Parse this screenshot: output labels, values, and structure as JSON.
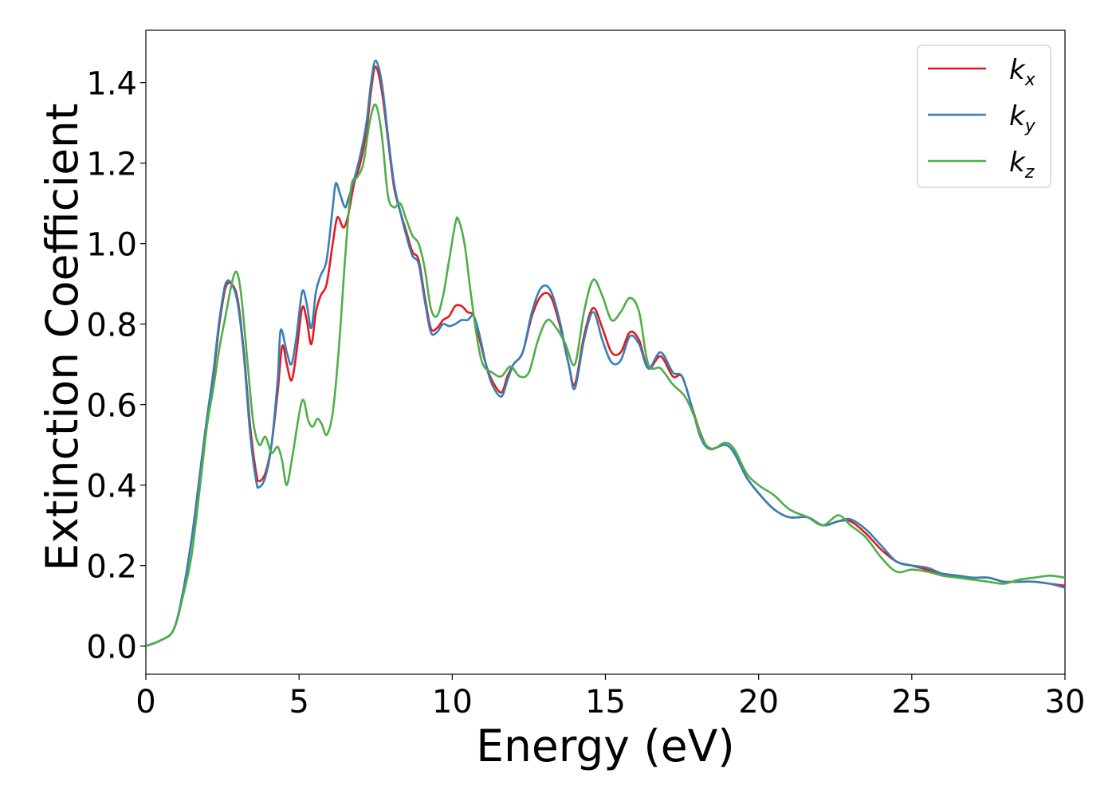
{
  "chart_data": {
    "type": "line",
    "title": "",
    "xlabel": "Energy (eV)",
    "ylabel": "Extinction Coefficient",
    "xlim": [
      0,
      30
    ],
    "ylim": [
      -0.07,
      1.53
    ],
    "x_ticks": [
      0,
      5,
      10,
      15,
      20,
      25,
      30
    ],
    "x_tick_labels": [
      "0",
      "5",
      "10",
      "15",
      "20",
      "25",
      "30"
    ],
    "y_ticks": [
      0.0,
      0.2,
      0.4,
      0.6,
      0.8,
      1.0,
      1.2,
      1.4
    ],
    "y_tick_labels": [
      "0.0",
      "0.2",
      "0.4",
      "0.6",
      "0.8",
      "1.0",
      "1.2",
      "1.4"
    ],
    "grid": false,
    "legend_position": "top-right",
    "series": [
      {
        "name": "k",
        "subscript": "x",
        "color": "#e41a1c",
        "points": [
          [
            0,
            0
          ],
          [
            0.5,
            0.015
          ],
          [
            0.9,
            0.04
          ],
          [
            1.2,
            0.13
          ],
          [
            1.5,
            0.27
          ],
          [
            1.8,
            0.45
          ],
          [
            2.0,
            0.57
          ],
          [
            2.2,
            0.67
          ],
          [
            2.4,
            0.8
          ],
          [
            2.6,
            0.89
          ],
          [
            2.8,
            0.9
          ],
          [
            3.0,
            0.86
          ],
          [
            3.2,
            0.73
          ],
          [
            3.4,
            0.55
          ],
          [
            3.6,
            0.43
          ],
          [
            3.7,
            0.41
          ],
          [
            3.9,
            0.43
          ],
          [
            4.1,
            0.5
          ],
          [
            4.3,
            0.63
          ],
          [
            4.45,
            0.745
          ],
          [
            4.6,
            0.7
          ],
          [
            4.75,
            0.66
          ],
          [
            4.9,
            0.72
          ],
          [
            5.1,
            0.84
          ],
          [
            5.25,
            0.81
          ],
          [
            5.4,
            0.75
          ],
          [
            5.55,
            0.83
          ],
          [
            5.7,
            0.87
          ],
          [
            5.9,
            0.9
          ],
          [
            6.1,
            1.0
          ],
          [
            6.25,
            1.065
          ],
          [
            6.45,
            1.04
          ],
          [
            6.6,
            1.07
          ],
          [
            6.8,
            1.15
          ],
          [
            7.0,
            1.2
          ],
          [
            7.2,
            1.28
          ],
          [
            7.35,
            1.38
          ],
          [
            7.5,
            1.44
          ],
          [
            7.7,
            1.38
          ],
          [
            7.9,
            1.26
          ],
          [
            8.1,
            1.14
          ],
          [
            8.3,
            1.08
          ],
          [
            8.5,
            1.03
          ],
          [
            8.7,
            0.98
          ],
          [
            8.9,
            0.96
          ],
          [
            9.1,
            0.87
          ],
          [
            9.3,
            0.79
          ],
          [
            9.5,
            0.79
          ],
          [
            9.7,
            0.81
          ],
          [
            9.9,
            0.82
          ],
          [
            10.1,
            0.845
          ],
          [
            10.3,
            0.845
          ],
          [
            10.5,
            0.83
          ],
          [
            10.7,
            0.82
          ],
          [
            10.9,
            0.76
          ],
          [
            11.1,
            0.7
          ],
          [
            11.3,
            0.66
          ],
          [
            11.6,
            0.63
          ],
          [
            11.8,
            0.67
          ],
          [
            12.0,
            0.7
          ],
          [
            12.3,
            0.73
          ],
          [
            12.6,
            0.82
          ],
          [
            12.9,
            0.87
          ],
          [
            13.2,
            0.87
          ],
          [
            13.5,
            0.8
          ],
          [
            13.8,
            0.7
          ],
          [
            14.0,
            0.65
          ],
          [
            14.3,
            0.77
          ],
          [
            14.6,
            0.84
          ],
          [
            14.9,
            0.79
          ],
          [
            15.2,
            0.73
          ],
          [
            15.5,
            0.73
          ],
          [
            15.8,
            0.78
          ],
          [
            16.1,
            0.76
          ],
          [
            16.4,
            0.69
          ],
          [
            16.8,
            0.72
          ],
          [
            17.2,
            0.67
          ],
          [
            17.5,
            0.67
          ],
          [
            17.8,
            0.6
          ],
          [
            18.1,
            0.53
          ],
          [
            18.4,
            0.49
          ],
          [
            18.9,
            0.5
          ],
          [
            19.2,
            0.48
          ],
          [
            19.6,
            0.42
          ],
          [
            20.0,
            0.38
          ],
          [
            20.5,
            0.34
          ],
          [
            21.0,
            0.32
          ],
          [
            21.6,
            0.32
          ],
          [
            22.1,
            0.3
          ],
          [
            22.6,
            0.31
          ],
          [
            23.0,
            0.31
          ],
          [
            23.5,
            0.28
          ],
          [
            24.0,
            0.24
          ],
          [
            24.5,
            0.21
          ],
          [
            25.0,
            0.2
          ],
          [
            25.5,
            0.19
          ],
          [
            26.0,
            0.18
          ],
          [
            26.5,
            0.175
          ],
          [
            27.0,
            0.17
          ],
          [
            27.5,
            0.17
          ],
          [
            28.0,
            0.16
          ],
          [
            28.5,
            0.16
          ],
          [
            29.0,
            0.16
          ],
          [
            29.5,
            0.155
          ],
          [
            30.0,
            0.15
          ]
        ]
      },
      {
        "name": "k",
        "subscript": "y",
        "color": "#377eb8",
        "points": [
          [
            0,
            0
          ],
          [
            0.5,
            0.015
          ],
          [
            0.9,
            0.04
          ],
          [
            1.2,
            0.13
          ],
          [
            1.5,
            0.27
          ],
          [
            1.8,
            0.45
          ],
          [
            2.0,
            0.57
          ],
          [
            2.2,
            0.68
          ],
          [
            2.4,
            0.81
          ],
          [
            2.6,
            0.9
          ],
          [
            2.8,
            0.9
          ],
          [
            3.0,
            0.85
          ],
          [
            3.2,
            0.72
          ],
          [
            3.4,
            0.53
          ],
          [
            3.6,
            0.41
          ],
          [
            3.7,
            0.395
          ],
          [
            3.9,
            0.42
          ],
          [
            4.1,
            0.5
          ],
          [
            4.3,
            0.66
          ],
          [
            4.4,
            0.785
          ],
          [
            4.6,
            0.73
          ],
          [
            4.75,
            0.7
          ],
          [
            4.9,
            0.76
          ],
          [
            5.1,
            0.88
          ],
          [
            5.25,
            0.85
          ],
          [
            5.4,
            0.79
          ],
          [
            5.55,
            0.88
          ],
          [
            5.7,
            0.92
          ],
          [
            5.9,
            0.96
          ],
          [
            6.1,
            1.09
          ],
          [
            6.2,
            1.15
          ],
          [
            6.35,
            1.12
          ],
          [
            6.5,
            1.09
          ],
          [
            6.6,
            1.11
          ],
          [
            6.8,
            1.16
          ],
          [
            7.0,
            1.22
          ],
          [
            7.2,
            1.3
          ],
          [
            7.35,
            1.4
          ],
          [
            7.5,
            1.455
          ],
          [
            7.7,
            1.4
          ],
          [
            7.9,
            1.27
          ],
          [
            8.1,
            1.15
          ],
          [
            8.3,
            1.08
          ],
          [
            8.5,
            1.02
          ],
          [
            8.7,
            0.97
          ],
          [
            8.9,
            0.95
          ],
          [
            9.1,
            0.86
          ],
          [
            9.3,
            0.78
          ],
          [
            9.5,
            0.78
          ],
          [
            9.7,
            0.8
          ],
          [
            9.9,
            0.795
          ],
          [
            10.1,
            0.8
          ],
          [
            10.3,
            0.81
          ],
          [
            10.5,
            0.81
          ],
          [
            10.7,
            0.82
          ],
          [
            10.9,
            0.77
          ],
          [
            11.1,
            0.7
          ],
          [
            11.3,
            0.65
          ],
          [
            11.6,
            0.62
          ],
          [
            11.8,
            0.66
          ],
          [
            12.0,
            0.7
          ],
          [
            12.3,
            0.73
          ],
          [
            12.6,
            0.83
          ],
          [
            12.9,
            0.89
          ],
          [
            13.2,
            0.885
          ],
          [
            13.5,
            0.81
          ],
          [
            13.8,
            0.7
          ],
          [
            14.0,
            0.64
          ],
          [
            14.3,
            0.76
          ],
          [
            14.6,
            0.83
          ],
          [
            14.9,
            0.76
          ],
          [
            15.2,
            0.705
          ],
          [
            15.5,
            0.71
          ],
          [
            15.8,
            0.77
          ],
          [
            16.1,
            0.75
          ],
          [
            16.4,
            0.69
          ],
          [
            16.8,
            0.73
          ],
          [
            17.2,
            0.68
          ],
          [
            17.5,
            0.67
          ],
          [
            17.8,
            0.6
          ],
          [
            18.1,
            0.52
          ],
          [
            18.4,
            0.49
          ],
          [
            18.9,
            0.5
          ],
          [
            19.2,
            0.48
          ],
          [
            19.6,
            0.42
          ],
          [
            20.0,
            0.38
          ],
          [
            20.5,
            0.34
          ],
          [
            21.0,
            0.32
          ],
          [
            21.6,
            0.32
          ],
          [
            22.1,
            0.3
          ],
          [
            22.6,
            0.31
          ],
          [
            23.0,
            0.315
          ],
          [
            23.5,
            0.29
          ],
          [
            24.0,
            0.25
          ],
          [
            24.5,
            0.21
          ],
          [
            25.0,
            0.2
          ],
          [
            25.5,
            0.195
          ],
          [
            26.0,
            0.18
          ],
          [
            26.5,
            0.175
          ],
          [
            27.0,
            0.17
          ],
          [
            27.5,
            0.17
          ],
          [
            28.0,
            0.16
          ],
          [
            28.5,
            0.16
          ],
          [
            29.0,
            0.16
          ],
          [
            29.5,
            0.155
          ],
          [
            30.0,
            0.145
          ]
        ]
      },
      {
        "name": "k",
        "subscript": "z",
        "color": "#4daf4a",
        "points": [
          [
            0,
            0
          ],
          [
            0.5,
            0.015
          ],
          [
            0.9,
            0.04
          ],
          [
            1.2,
            0.12
          ],
          [
            1.5,
            0.23
          ],
          [
            1.8,
            0.42
          ],
          [
            2.0,
            0.55
          ],
          [
            2.2,
            0.64
          ],
          [
            2.4,
            0.74
          ],
          [
            2.6,
            0.82
          ],
          [
            2.8,
            0.9
          ],
          [
            2.95,
            0.93
          ],
          [
            3.1,
            0.88
          ],
          [
            3.3,
            0.72
          ],
          [
            3.5,
            0.56
          ],
          [
            3.7,
            0.5
          ],
          [
            3.9,
            0.52
          ],
          [
            4.1,
            0.48
          ],
          [
            4.3,
            0.495
          ],
          [
            4.45,
            0.46
          ],
          [
            4.6,
            0.4
          ],
          [
            4.8,
            0.48
          ],
          [
            5.1,
            0.61
          ],
          [
            5.3,
            0.56
          ],
          [
            5.45,
            0.545
          ],
          [
            5.6,
            0.565
          ],
          [
            5.75,
            0.55
          ],
          [
            5.9,
            0.525
          ],
          [
            6.1,
            0.58
          ],
          [
            6.3,
            0.74
          ],
          [
            6.5,
            0.96
          ],
          [
            6.7,
            1.14
          ],
          [
            6.9,
            1.165
          ],
          [
            7.1,
            1.2
          ],
          [
            7.3,
            1.3
          ],
          [
            7.5,
            1.345
          ],
          [
            7.7,
            1.27
          ],
          [
            7.9,
            1.12
          ],
          [
            8.1,
            1.09
          ],
          [
            8.3,
            1.1
          ],
          [
            8.5,
            1.06
          ],
          [
            8.7,
            1.02
          ],
          [
            8.9,
            1.0
          ],
          [
            9.1,
            0.94
          ],
          [
            9.3,
            0.84
          ],
          [
            9.5,
            0.82
          ],
          [
            9.7,
            0.87
          ],
          [
            9.9,
            0.96
          ],
          [
            10.1,
            1.05
          ],
          [
            10.2,
            1.06
          ],
          [
            10.4,
            1.0
          ],
          [
            10.6,
            0.88
          ],
          [
            10.8,
            0.77
          ],
          [
            11.0,
            0.7
          ],
          [
            11.3,
            0.68
          ],
          [
            11.6,
            0.67
          ],
          [
            11.9,
            0.695
          ],
          [
            12.2,
            0.67
          ],
          [
            12.5,
            0.68
          ],
          [
            12.8,
            0.76
          ],
          [
            13.1,
            0.81
          ],
          [
            13.4,
            0.79
          ],
          [
            13.7,
            0.75
          ],
          [
            14.0,
            0.7
          ],
          [
            14.3,
            0.83
          ],
          [
            14.6,
            0.91
          ],
          [
            14.9,
            0.87
          ],
          [
            15.2,
            0.81
          ],
          [
            15.5,
            0.83
          ],
          [
            15.8,
            0.865
          ],
          [
            16.1,
            0.83
          ],
          [
            16.4,
            0.7
          ],
          [
            16.8,
            0.69
          ],
          [
            17.2,
            0.65
          ],
          [
            17.6,
            0.62
          ],
          [
            17.9,
            0.57
          ],
          [
            18.2,
            0.51
          ],
          [
            18.5,
            0.49
          ],
          [
            18.9,
            0.505
          ],
          [
            19.2,
            0.49
          ],
          [
            19.6,
            0.43
          ],
          [
            20.0,
            0.4
          ],
          [
            20.5,
            0.375
          ],
          [
            21.0,
            0.34
          ],
          [
            21.6,
            0.32
          ],
          [
            22.1,
            0.3
          ],
          [
            22.6,
            0.325
          ],
          [
            23.0,
            0.3
          ],
          [
            23.5,
            0.27
          ],
          [
            24.0,
            0.22
          ],
          [
            24.5,
            0.185
          ],
          [
            25.0,
            0.19
          ],
          [
            25.5,
            0.185
          ],
          [
            26.0,
            0.175
          ],
          [
            26.5,
            0.17
          ],
          [
            27.0,
            0.165
          ],
          [
            27.5,
            0.16
          ],
          [
            28.0,
            0.155
          ],
          [
            28.5,
            0.165
          ],
          [
            29.0,
            0.17
          ],
          [
            29.5,
            0.175
          ],
          [
            30.0,
            0.17
          ]
        ]
      }
    ]
  }
}
